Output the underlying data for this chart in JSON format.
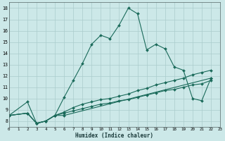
{
  "xlabel": "Humidex (Indice chaleur)",
  "bg_color": "#cce8e8",
  "grid_color": "#aacccc",
  "line_color": "#1a6a5a",
  "xlim": [
    0,
    23
  ],
  "ylim": [
    7.5,
    18.5
  ],
  "xticks": [
    0,
    1,
    2,
    3,
    4,
    5,
    6,
    7,
    8,
    9,
    10,
    11,
    12,
    13,
    14,
    15,
    16,
    17,
    18,
    19,
    20,
    21,
    22,
    23
  ],
  "yticks": [
    8,
    9,
    10,
    11,
    12,
    13,
    14,
    15,
    16,
    17,
    18
  ],
  "series": [
    {
      "x": [
        0,
        2,
        3,
        4,
        5,
        6,
        7,
        8,
        9,
        10,
        11,
        12,
        13,
        14,
        15,
        16,
        17,
        18,
        19,
        20,
        21,
        22
      ],
      "y": [
        8.5,
        9.7,
        7.8,
        8.0,
        8.5,
        10.1,
        11.6,
        13.1,
        14.8,
        15.6,
        15.3,
        16.5,
        18.0,
        17.5,
        14.3,
        14.8,
        14.4,
        12.8,
        12.5,
        10.0,
        9.8,
        11.8
      ]
    },
    {
      "x": [
        0,
        2,
        3,
        4,
        5,
        6,
        22
      ],
      "y": [
        8.5,
        8.7,
        7.8,
        8.0,
        8.5,
        8.5,
        11.8
      ]
    },
    {
      "x": [
        0,
        2,
        3,
        4,
        5,
        6,
        7,
        8,
        9,
        10,
        11,
        12,
        13,
        14,
        15,
        16,
        17,
        18,
        19,
        20,
        21,
        22
      ],
      "y": [
        8.5,
        8.7,
        7.8,
        8.0,
        8.5,
        8.8,
        9.2,
        9.5,
        9.7,
        9.9,
        10.0,
        10.2,
        10.4,
        10.7,
        10.9,
        11.2,
        11.4,
        11.6,
        11.8,
        12.1,
        12.3,
        12.5
      ]
    },
    {
      "x": [
        0,
        2,
        3,
        4,
        5,
        6,
        7,
        8,
        9,
        10,
        11,
        12,
        13,
        14,
        15,
        16,
        17,
        18,
        19,
        20,
        21,
        22
      ],
      "y": [
        8.5,
        8.7,
        7.8,
        8.0,
        8.5,
        8.7,
        8.9,
        9.1,
        9.3,
        9.5,
        9.6,
        9.8,
        9.9,
        10.1,
        10.3,
        10.5,
        10.7,
        10.8,
        11.0,
        11.2,
        11.3,
        11.6
      ]
    }
  ]
}
